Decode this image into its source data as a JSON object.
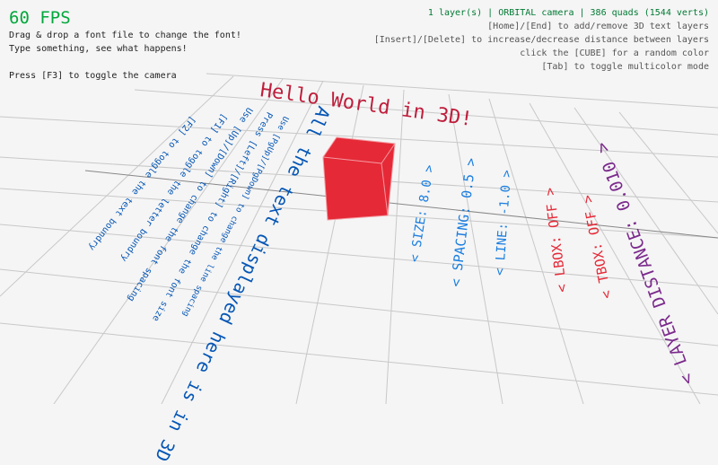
{
  "hud": {
    "fps": "60 FPS",
    "help_lines": [
      "Drag & drop a font file to change the font!",
      "Type something, see what happens!",
      "Press [F3] to toggle the camera"
    ],
    "status": "1 layer(s) | ORBITAL camera |  386 quads (1544 verts)",
    "controls": [
      "[Home]/[End] to add/remove 3D text layers",
      "[Insert]/[Delete] to increase/decrease distance between layers",
      "click the [CUBE] for a random color",
      "[Tab] to toggle multicolor mode"
    ]
  },
  "scene": {
    "title_text": "Hello World in 3D!",
    "main_text": "All the text displayed here is in 3D",
    "instructions": [
      "[F2] to toggle the text boundry",
      "[F1] to toggle the letter boundry",
      "Use [Up]/[Down] to change the font spacing",
      "Press [Left]/[Right] to change the font size",
      "Use [PgUp]/[PgDown] to change the line spacing"
    ],
    "labels": {
      "size": "< SIZE: 8.0 >",
      "spacing": "< SPACING: 0.5 >",
      "line": "< LINE: -1.0 >",
      "lbox": "< LBOX: OFF >",
      "tbox": "< TBOX: OFF >",
      "layer_distance": "< LAYER DISTANCE: 0.010 >"
    }
  },
  "colors": {
    "fps": "#00a83a",
    "status": "#007a33",
    "title": "#be1e3c",
    "main": "#0556b5",
    "labels_blue": "#1a7ee0",
    "labels_red": "#e62937",
    "labels_purple": "#7b2a8c",
    "cube": "#e62937"
  }
}
